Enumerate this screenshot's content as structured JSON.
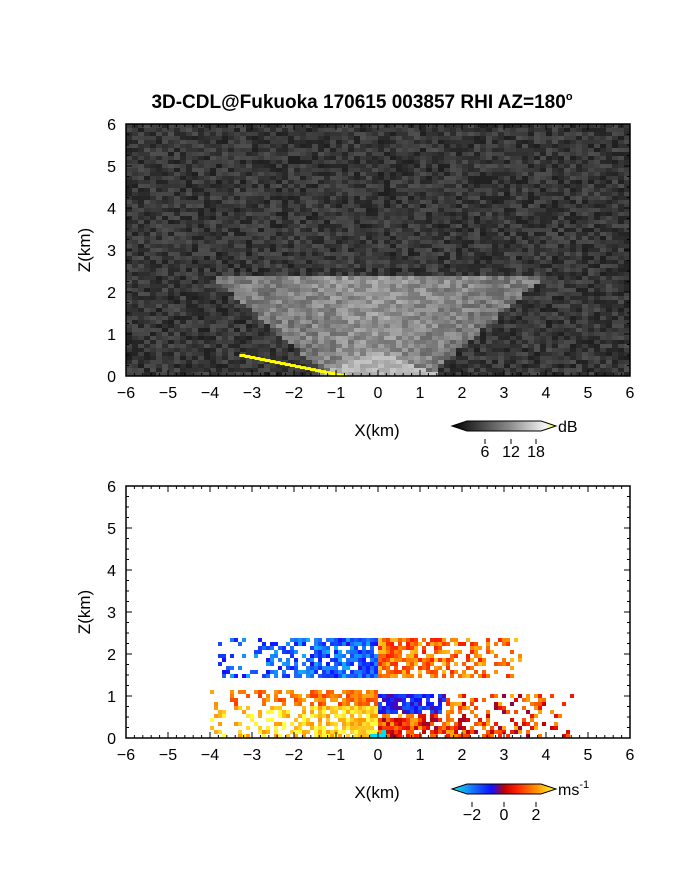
{
  "title": "3D-CDL@Fukuoka 170615 003857 RHI AZ=180",
  "title_degree": "o",
  "chart_data": [
    {
      "type": "heatmap",
      "variable": "backscatter intensity",
      "xlabel": "X(km)",
      "ylabel": "Z(km)",
      "xlim": [
        -6,
        6
      ],
      "ylim": [
        0,
        6
      ],
      "x_ticks": [
        "-6",
        "-5",
        "-4",
        "-3",
        "-2",
        "-1",
        "0",
        "1",
        "2",
        "3",
        "4",
        "5",
        "6"
      ],
      "y_ticks": [
        "0",
        "1",
        "2",
        "3",
        "4",
        "5",
        "6"
      ],
      "colorbar": {
        "unit": "dB",
        "ticks": [
          "6",
          "12",
          "18"
        ],
        "range": [
          0,
          21
        ]
      },
      "regions": [
        {
          "x": [
            -4.0,
            4.0
          ],
          "z": [
            0.0,
            2.4
          ],
          "value_db": 12
        },
        {
          "x": [
            -1.5,
            1.5
          ],
          "z": [
            0.0,
            0.6
          ],
          "value_db": 17
        },
        {
          "x": [
            -3.3,
            -0.8
          ],
          "z": [
            0.0,
            0.5
          ],
          "value_db": 21
        }
      ]
    },
    {
      "type": "heatmap",
      "variable": "radial velocity",
      "xlabel": "X(km)",
      "ylabel": "Z(km)",
      "xlim": [
        -6,
        6
      ],
      "ylim": [
        0,
        6
      ],
      "x_ticks": [
        "-6",
        "-5",
        "-4",
        "-3",
        "-2",
        "-1",
        "0",
        "1",
        "2",
        "3",
        "4",
        "5",
        "6"
      ],
      "y_ticks": [
        "0",
        "1",
        "2",
        "3",
        "4",
        "5",
        "6"
      ],
      "colorbar": {
        "unit": "ms",
        "unit_exp": "-1",
        "ticks": [
          "-2",
          "0",
          "2"
        ],
        "range": [
          -3,
          3
        ]
      },
      "regions": [
        {
          "x": [
            -3.8,
            0.0
          ],
          "z": [
            1.4,
            2.4
          ],
          "velocity": -1.5
        },
        {
          "x": [
            0.0,
            3.4
          ],
          "z": [
            1.4,
            2.4
          ],
          "velocity": 1.5
        },
        {
          "x": [
            -4.0,
            0.0
          ],
          "z": [
            0.0,
            1.1
          ],
          "velocity": 2.5
        },
        {
          "x": [
            0.0,
            4.8
          ],
          "z": [
            0.0,
            1.0
          ],
          "velocity": 1.0
        },
        {
          "x": [
            0.0,
            1.6
          ],
          "z": [
            0.6,
            1.3
          ],
          "velocity": -1.0
        }
      ]
    }
  ]
}
